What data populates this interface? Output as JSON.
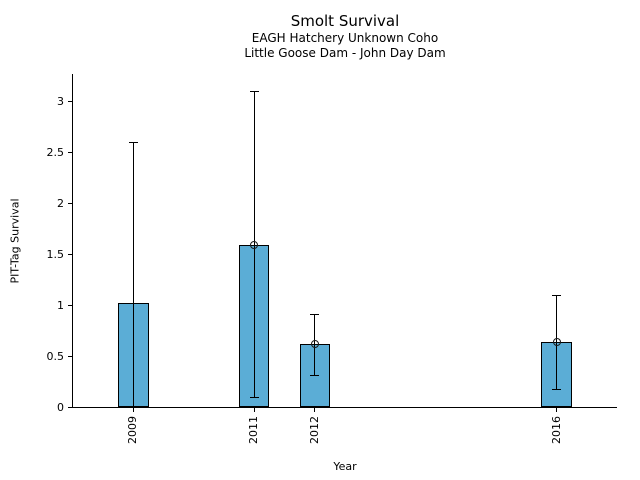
{
  "figure": {
    "title": "Smolt Survival",
    "subtitle1": "EAGH Hatchery Unknown Coho",
    "subtitle2": "Little Goose Dam - John Day Dam"
  },
  "chart_data": {
    "type": "bar",
    "title": "Smolt Survival",
    "subtitles": [
      "EAGH Hatchery Unknown Coho",
      "Little Goose Dam - John Day Dam"
    ],
    "xlabel": "Year",
    "ylabel": "PIT-Tag Survival",
    "xlim": [
      2008,
      2017
    ],
    "ylim": [
      0,
      3.27
    ],
    "x_ticks": [
      2009,
      2011,
      2012,
      2016
    ],
    "x_tick_labels": [
      "2009",
      "2011",
      "2012",
      "2016"
    ],
    "y_ticks": [
      0,
      0.5,
      1,
      1.5,
      2,
      2.5,
      3
    ],
    "y_tick_labels": [
      "0",
      "0.5",
      "1",
      "1.5",
      "2",
      "2.5",
      "3"
    ],
    "grid": false,
    "legend": null,
    "bar_width_years": 0.5,
    "bar_color": "#5badd6",
    "bar_edge_color": "#000000",
    "error_color": "#000000",
    "points": [
      {
        "year": 2009,
        "value": 1.03,
        "ci_low": 0.0,
        "ci_high": 2.6,
        "marker": false
      },
      {
        "year": 2011,
        "value": 1.6,
        "ci_low": 0.1,
        "ci_high": 3.1,
        "marker": true
      },
      {
        "year": 2012,
        "value": 0.63,
        "ci_low": 0.31,
        "ci_high": 0.92,
        "marker": true
      },
      {
        "year": 2016,
        "value": 0.65,
        "ci_low": 0.18,
        "ci_high": 1.11,
        "marker": true
      }
    ]
  }
}
